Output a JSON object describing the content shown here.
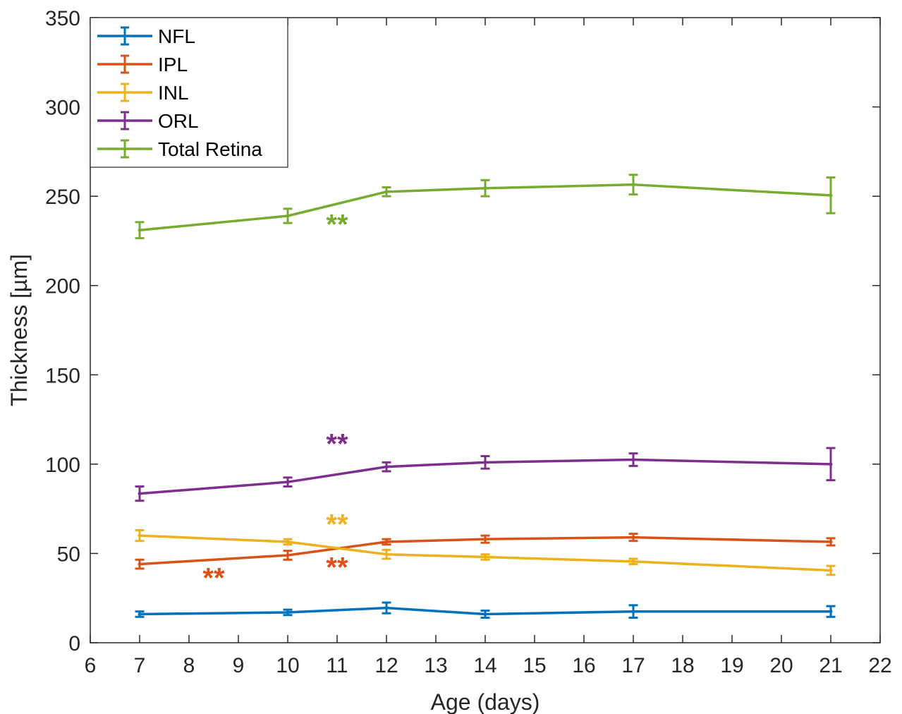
{
  "chart_data": {
    "type": "line",
    "xlabel": "Age (days)",
    "ylabel": "Thickness [µm]",
    "xlim": [
      6,
      22
    ],
    "ylim": [
      0,
      350
    ],
    "xticks": [
      "6",
      "7",
      "8",
      "9",
      "10",
      "11",
      "12",
      "13",
      "14",
      "15",
      "16",
      "17",
      "18",
      "19",
      "20",
      "21",
      "22"
    ],
    "yticks": [
      "0",
      "50",
      "100",
      "150",
      "200",
      "250",
      "300",
      "350"
    ],
    "grid": false,
    "legend_position": "top-left",
    "x": [
      7,
      10,
      12,
      14,
      17,
      21
    ],
    "series": [
      {
        "name": "NFL",
        "color": "#0072BD",
        "values": [
          16,
          17,
          19.5,
          16,
          17.5,
          17.5
        ],
        "errors": [
          1.5,
          1.5,
          3,
          2,
          3.5,
          3
        ]
      },
      {
        "name": "IPL",
        "color": "#D95319",
        "values": [
          44,
          49,
          56.5,
          58,
          59,
          56.5
        ],
        "errors": [
          2.5,
          2.5,
          1.5,
          2,
          2,
          2
        ]
      },
      {
        "name": "INL",
        "color": "#EDB120",
        "values": [
          60,
          56.5,
          49.5,
          48,
          45.5,
          40.5
        ],
        "errors": [
          3,
          1.5,
          2.5,
          1.5,
          1.5,
          2.5
        ]
      },
      {
        "name": "ORL",
        "color": "#7E2F8E",
        "values": [
          83.5,
          90,
          98.5,
          101,
          102.5,
          100
        ],
        "errors": [
          4,
          2.5,
          2.5,
          3.5,
          3.5,
          9
        ]
      },
      {
        "name": "Total Retina",
        "color": "#77AC30",
        "values": [
          231,
          239,
          252.5,
          254.5,
          256.5,
          250.5
        ],
        "errors": [
          4.5,
          4,
          2.5,
          4.5,
          5.5,
          10
        ]
      }
    ],
    "annotations": [
      {
        "text": "**",
        "x": 11,
        "y": 229,
        "color": "#77AC30"
      },
      {
        "text": "**",
        "x": 11,
        "y": 106,
        "color": "#7E2F8E"
      },
      {
        "text": "**",
        "x": 11,
        "y": 61,
        "color": "#EDB120"
      },
      {
        "text": "**",
        "x": 11,
        "y": 37,
        "color": "#D95319"
      },
      {
        "text": "**",
        "x": 8.5,
        "y": 31,
        "color": "#D95319"
      }
    ]
  }
}
